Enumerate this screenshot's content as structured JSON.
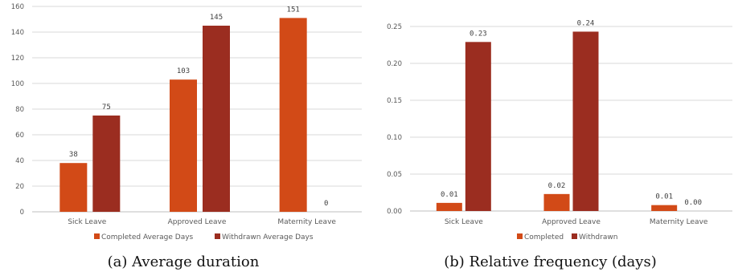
{
  "chart_data": [
    {
      "type": "bar",
      "title": "",
      "caption": "(a) Average duration",
      "categories": [
        "Sick Leave",
        "Approved Leave",
        "Maternity Leave"
      ],
      "series": [
        {
          "name": "Completed Average Days",
          "values": [
            38,
            103,
            151
          ],
          "labels": [
            "38",
            "103",
            "151"
          ],
          "color": "#d24a17"
        },
        {
          "name": "Withdrawn Average Days",
          "values": [
            75,
            145,
            0
          ],
          "labels": [
            "75",
            "145",
            "0"
          ],
          "color": "#9b2d20"
        }
      ],
      "ylim": [
        0,
        160
      ],
      "yticks": [
        0,
        20,
        40,
        60,
        80,
        100,
        120,
        140,
        160
      ],
      "ytick_labels": [
        "0",
        "20",
        "40",
        "60",
        "80",
        "100",
        "120",
        "140",
        "160"
      ],
      "grid": true,
      "legend": "bottom"
    },
    {
      "type": "bar",
      "title": "",
      "caption": "(b) Relative frequency (days)",
      "categories": [
        "Sick Leave",
        "Approved Leave",
        "Maternity Leave"
      ],
      "series": [
        {
          "name": "Completed",
          "values": [
            0.011,
            0.023,
            0.008
          ],
          "labels": [
            "0.01",
            "0.02",
            "0.01"
          ],
          "color": "#d24a17"
        },
        {
          "name": "Withdrawn",
          "values": [
            0.229,
            0.243,
            0.0
          ],
          "labels": [
            "0.23",
            "0.24",
            "0.00"
          ],
          "color": "#9b2d20"
        }
      ],
      "ylim": [
        0,
        0.25
      ],
      "yticks": [
        0,
        0.05,
        0.1,
        0.15,
        0.2,
        0.25
      ],
      "ytick_labels": [
        "0.00",
        "0.05",
        "0.10",
        "0.15",
        "0.20",
        "0.25"
      ],
      "grid": true,
      "legend": "bottom"
    }
  ]
}
